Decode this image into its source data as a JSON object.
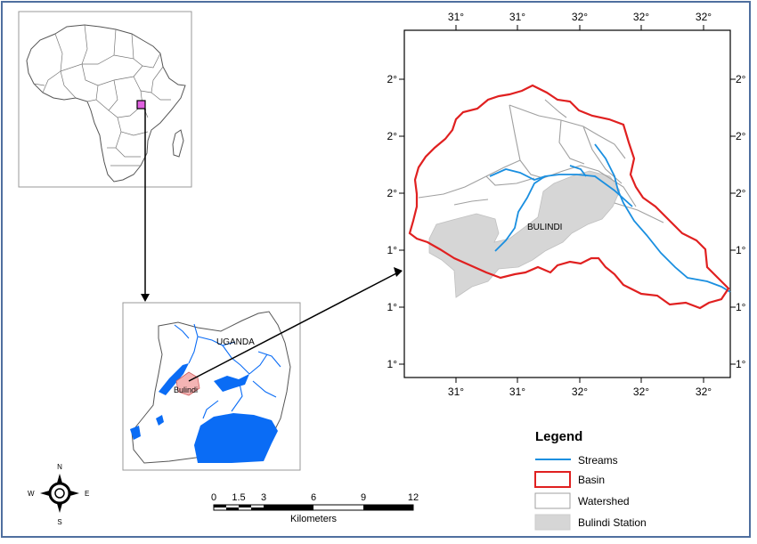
{
  "main_map": {
    "top_ticks": [
      "31°",
      "31°",
      "32°",
      "32°",
      "32°"
    ],
    "bottom_ticks": [
      "31°",
      "31°",
      "32°",
      "32°",
      "32°"
    ],
    "left_ticks": [
      "2°",
      "2°",
      "2°",
      "1°",
      "1°",
      "1°"
    ],
    "right_ticks": [
      "2°",
      "2°",
      "2°",
      "1°",
      "1°",
      "1°"
    ],
    "station_label": "BULINDI"
  },
  "uganda_inset": {
    "country_label": "UGANDA",
    "site_label": "Bulindi"
  },
  "legend": {
    "title": "Legend",
    "items": [
      {
        "label": "Streams",
        "symbol": "line",
        "color": "#1a8fe0"
      },
      {
        "label": "Basin",
        "symbol": "box",
        "color": "#e02020"
      },
      {
        "label": "Watershed",
        "symbol": "box",
        "color": "#a0a0a0"
      },
      {
        "label": "Bulindi Station",
        "symbol": "fill",
        "color": "#d6d6d6"
      }
    ]
  },
  "north_arrow": {
    "n": "N",
    "s": "S",
    "e": "E",
    "w": "W"
  },
  "scale_bar": {
    "ticks": [
      "0",
      "1.5",
      "3",
      "6",
      "9",
      "12"
    ],
    "unit": "Kilometers"
  },
  "colors": {
    "water": "#0a6cf5",
    "basin": "#e02020",
    "stream": "#1a8fe0",
    "station": "#d6d6d6",
    "highlight": "#e060e0"
  }
}
